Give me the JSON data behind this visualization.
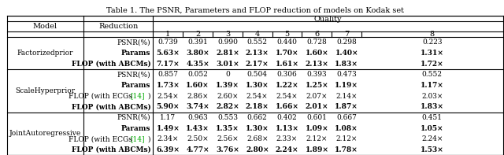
{
  "title": "Table 1. The PSNR, Parameters and FLOP reduction of models on Kodak set",
  "col_headers": [
    "Model",
    "Reduction",
    "1",
    "2",
    "3",
    "4",
    "5",
    "6",
    "7",
    "8"
  ],
  "quality_label": "Quality",
  "sections": [
    {
      "model": "Factorizedprior",
      "rows": [
        {
          "label": "PSNR(%)",
          "bold": false,
          "values": [
            "0.739",
            "0.391",
            "0.990",
            "0.552",
            "0.440",
            "0.728",
            "0.298",
            "0.223"
          ]
        },
        {
          "label": "Params",
          "bold": true,
          "values": [
            "5.63×",
            "3.80×",
            "2.81×",
            "2.13×",
            "1.70×",
            "1.60×",
            "1.40×",
            "1.31×"
          ]
        },
        {
          "label": "FLOP (with ABCMs)",
          "bold": true,
          "values": [
            "7.17×",
            "4.35×",
            "3.01×",
            "2.17×",
            "1.61×",
            "2.13×",
            "1.83×",
            "1.72×"
          ]
        }
      ]
    },
    {
      "model": "ScaleHyperprior",
      "rows": [
        {
          "label": "PSNR(%)",
          "bold": false,
          "values": [
            "0.857",
            "0.052",
            "0",
            "0.504",
            "0.306",
            "0.393",
            "0.473",
            "0.552"
          ]
        },
        {
          "label": "Params",
          "bold": true,
          "values": [
            "1.73×",
            "1.60×",
            "1.39×",
            "1.30×",
            "1.22×",
            "1.25×",
            "1.19×",
            "1.17×"
          ]
        },
        {
          "label": "FLOP (with ECGs [14])",
          "bold": false,
          "ecg": true,
          "values": [
            "2.54×",
            "2.86×",
            "2.60×",
            "2.54×",
            "2.54×",
            "2.07×",
            "2.14×",
            "2.03×"
          ]
        },
        {
          "label": "FLOP (with ABCMs)",
          "bold": true,
          "values": [
            "5.90×",
            "3.74×",
            "2.82×",
            "2.18×",
            "1.66×",
            "2.01×",
            "1.87×",
            "1.83×"
          ]
        }
      ]
    },
    {
      "model": "JointAutoregressive",
      "rows": [
        {
          "label": "PSNR(%)",
          "bold": false,
          "values": [
            "1.17",
            "0.963",
            "0.553",
            "0.662",
            "0.402",
            "0.601",
            "0.667",
            "0.451"
          ]
        },
        {
          "label": "Params",
          "bold": true,
          "values": [
            "1.49×",
            "1.43×",
            "1.35×",
            "1.30×",
            "1.13×",
            "1.09×",
            "1.08×",
            "1.05×"
          ]
        },
        {
          "label": "FLOP (with ECGs [14])",
          "bold": false,
          "ecg": true,
          "values": [
            "2.34×",
            "2.50×",
            "2.56×",
            "2.68×",
            "2.33×",
            "2.12×",
            "2.12×",
            "2.24×"
          ]
        },
        {
          "label": "FLOP (with ABCMs)",
          "bold": true,
          "values": [
            "6.39×",
            "4.77×",
            "3.76×",
            "2.80×",
            "2.24×",
            "1.89×",
            "1.78×",
            "1.53×"
          ]
        }
      ]
    }
  ],
  "ecg_ref_color": "#00aa00",
  "background_color": "#ffffff",
  "font_size": 6.5
}
